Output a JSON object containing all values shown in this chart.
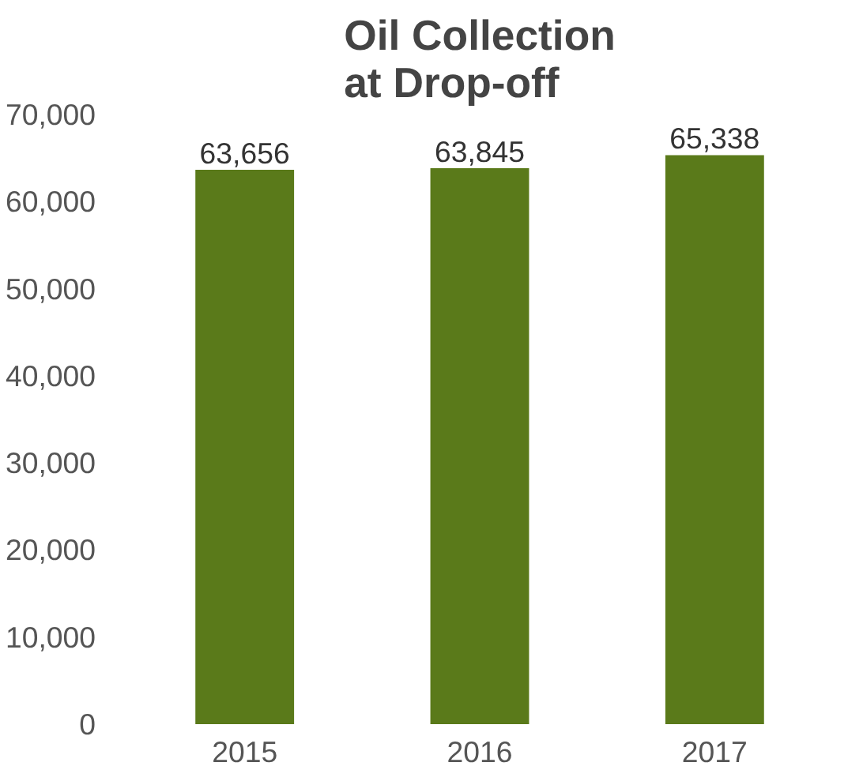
{
  "chart_data": {
    "type": "bar",
    "title": "Oil Collection\nat Drop-off",
    "categories": [
      "2015",
      "2016",
      "2017"
    ],
    "values": [
      63656,
      63845,
      65338
    ],
    "color": "#5a7a1a",
    "ylim": [
      0,
      70000
    ],
    "yticks": [
      {
        "value": 0,
        "label": "0"
      },
      {
        "value": 10000,
        "label": "10,000"
      },
      {
        "value": 20000,
        "label": "20,000"
      },
      {
        "value": 30000,
        "label": "30,000"
      },
      {
        "value": 40000,
        "label": "40,000"
      },
      {
        "value": 50000,
        "label": "50,000"
      },
      {
        "value": 60000,
        "label": "60,000"
      },
      {
        "value": 70000,
        "label": "70,000"
      }
    ],
    "value_labels": [
      "63,656",
      "63,845",
      "65,338"
    ],
    "grid": false
  }
}
